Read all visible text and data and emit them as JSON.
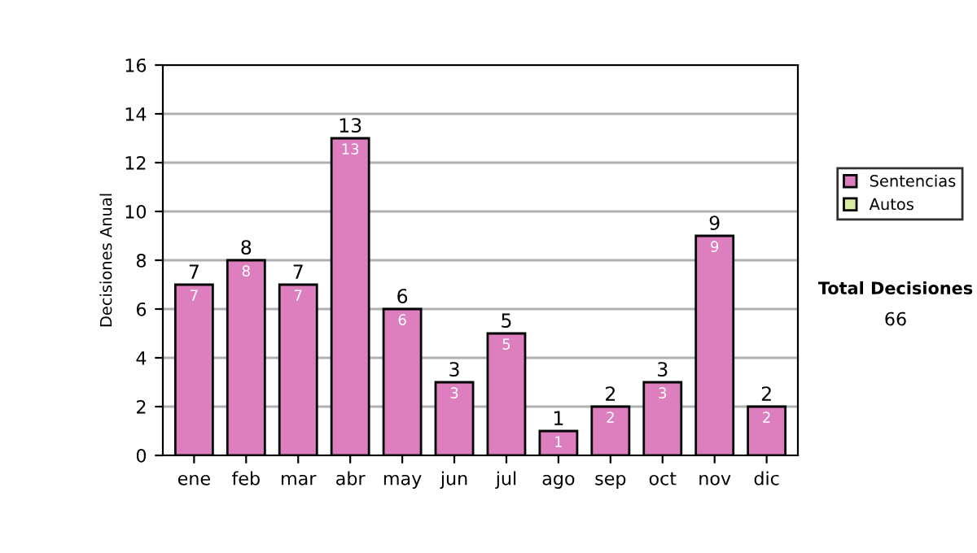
{
  "chart_data": {
    "type": "bar",
    "ylabel": "Decisiones Anual",
    "categories": [
      "ene",
      "feb",
      "mar",
      "abr",
      "may",
      "jun",
      "jul",
      "ago",
      "sep",
      "oct",
      "nov",
      "dic"
    ],
    "series": [
      {
        "name": "Sentencias",
        "color": "#dd7fbf",
        "values": [
          7,
          8,
          7,
          13,
          6,
          3,
          5,
          1,
          2,
          3,
          9,
          2
        ]
      },
      {
        "name": "Autos",
        "color": "#d8eca0",
        "values": [
          null,
          null,
          null,
          null,
          null,
          null,
          null,
          null,
          null,
          null,
          null,
          null
        ]
      }
    ],
    "stacked": true,
    "data_labels": true,
    "totals": [
      "7",
      "8",
      "7",
      "13",
      "6",
      "3",
      "5",
      "1",
      "2",
      "3",
      "9",
      "2"
    ],
    "ylim": [
      0,
      16
    ],
    "yticks": [
      0,
      2,
      4,
      6,
      8,
      10,
      12,
      14,
      16
    ],
    "grid": "y",
    "legend": "right",
    "annotations": [
      "Total Decisiones",
      "66"
    ]
  }
}
